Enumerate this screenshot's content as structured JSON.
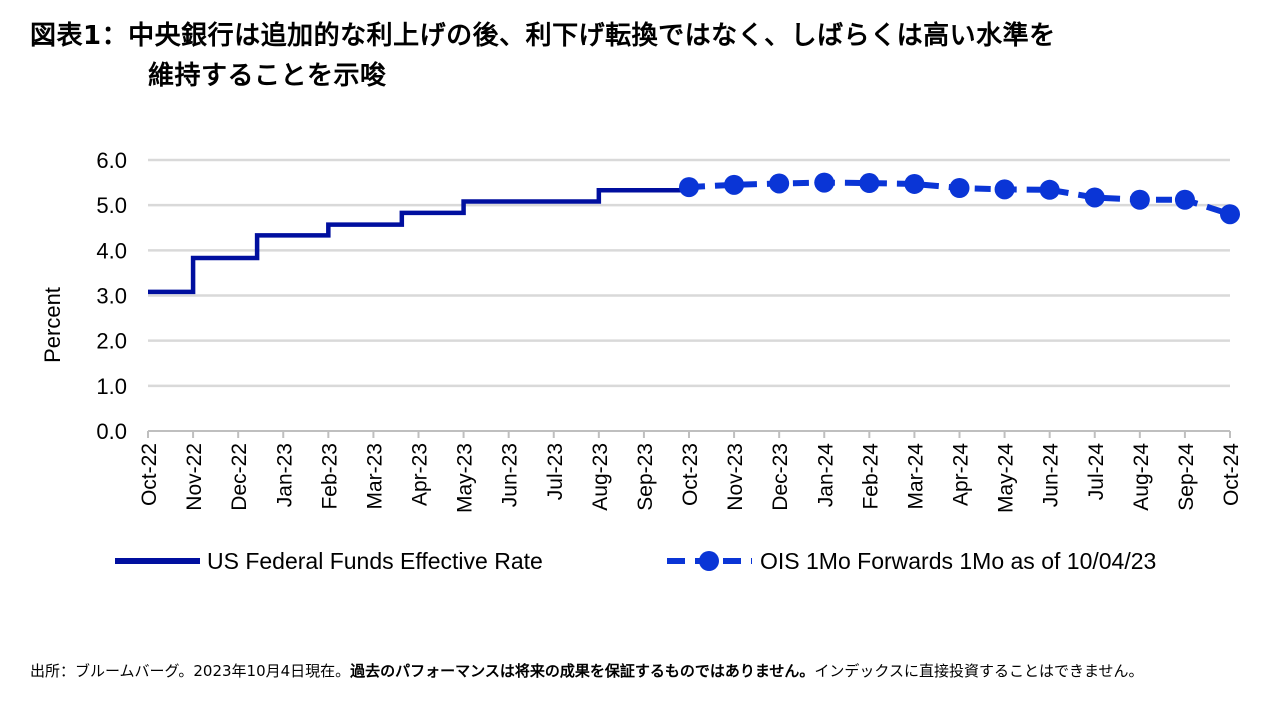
{
  "title": {
    "line1": "図表1：中央銀行は追加的な利上げの後、利下げ転換ではなく、しばらくは高い水準を",
    "line2": "維持することを示唆"
  },
  "footer": {
    "source": "出所：ブルームバーグ。2023年10月4日現在。",
    "disclaimer": "過去のパフォーマンスは将来の成果を保証するものではありません。",
    "note": "インデックスに直接投資することはできません。"
  },
  "chart_data": {
    "type": "line",
    "title": "",
    "xlabel": "",
    "ylabel": "Percent",
    "ylim": [
      0,
      6
    ],
    "yticks": [
      "0.0",
      "1.0",
      "2.0",
      "3.0",
      "4.0",
      "5.0",
      "6.0"
    ],
    "grid": true,
    "legend_position": "bottom",
    "categories": [
      "Oct-22",
      "Nov-22",
      "Dec-22",
      "Jan-23",
      "Feb-23",
      "Mar-23",
      "Apr-23",
      "May-23",
      "Jun-23",
      "Jul-23",
      "Aug-23",
      "Sep-23",
      "Oct-23",
      "Nov-23",
      "Dec-23",
      "Jan-24",
      "Feb-24",
      "Mar-24",
      "Apr-24",
      "May-24",
      "Jun-24",
      "Jul-24",
      "Aug-24",
      "Sep-24",
      "Oct-24"
    ],
    "series": [
      {
        "name": "US Federal Funds Effective Rate",
        "style": "solid-step",
        "color": "#000f9f",
        "steps": [
          {
            "x": 0.0,
            "y": 3.08
          },
          {
            "x": 1.0,
            "y": 3.83
          },
          {
            "x": 2.42,
            "y": 4.33
          },
          {
            "x": 4.0,
            "y": 4.57
          },
          {
            "x": 5.63,
            "y": 4.83
          },
          {
            "x": 7.0,
            "y": 5.08
          },
          {
            "x": 9.88,
            "y": 5.08
          },
          {
            "x": 10.0,
            "y": 5.33
          },
          {
            "x": 12.0,
            "y": 5.33
          }
        ]
      },
      {
        "name": "OIS 1Mo Forwards 1Mo as of 10/04/23",
        "style": "dashed-markers",
        "color": "#0a35d6",
        "values": [
          null,
          null,
          null,
          null,
          null,
          null,
          null,
          null,
          null,
          null,
          null,
          null,
          5.4,
          5.45,
          5.48,
          5.5,
          5.49,
          5.47,
          5.38,
          5.35,
          5.34,
          5.17,
          5.12,
          5.12,
          4.8
        ]
      }
    ]
  }
}
